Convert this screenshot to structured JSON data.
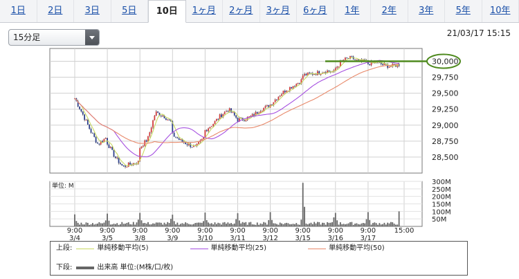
{
  "tabs": [
    {
      "label": "1日",
      "active": false
    },
    {
      "label": "2日",
      "active": false
    },
    {
      "label": "3日",
      "active": false
    },
    {
      "label": "5日",
      "active": false
    },
    {
      "label": "10日",
      "active": true
    },
    {
      "label": "1ヶ月",
      "active": false
    },
    {
      "label": "2ヶ月",
      "active": false
    },
    {
      "label": "3ヶ月",
      "active": false
    },
    {
      "label": "6ヶ月",
      "active": false
    },
    {
      "label": "1年",
      "active": false
    },
    {
      "label": "2年",
      "active": false
    },
    {
      "label": "3年",
      "active": false
    },
    {
      "label": "5年",
      "active": false
    },
    {
      "label": "10年",
      "active": false
    }
  ],
  "interval_select": {
    "value": "15分足"
  },
  "timestamp": "21/03/17 15:15",
  "colors": {
    "ma5": "#c8d860",
    "ma25": "#a54fe0",
    "ma50": "#e8896a",
    "candle_up": "#d23a3a",
    "candle_down": "#2d3f8a",
    "volume": "#666666",
    "highlight": "#4f8a1f"
  },
  "chart_data": [
    {
      "type": "candlestick",
      "title": "",
      "ylim": [
        28250,
        30200
      ],
      "y_ticks": [
        {
          "value": 30000,
          "label": "30,000"
        },
        {
          "value": 29750,
          "label": "29,750"
        },
        {
          "value": 29500,
          "label": "29,500"
        },
        {
          "value": 29250,
          "label": "29,250"
        },
        {
          "value": 29000,
          "label": "29,000"
        },
        {
          "value": 28750,
          "label": "28,750"
        },
        {
          "value": 28500,
          "label": "28,500"
        }
      ],
      "x_ticks": [
        {
          "time": "9:00",
          "date": "3/4"
        },
        {
          "time": "9:00",
          "date": "3/5"
        },
        {
          "time": "9:00",
          "date": "3/8"
        },
        {
          "time": "9:00",
          "date": "3/9"
        },
        {
          "time": "9:00",
          "date": "3/10"
        },
        {
          "time": "9:00",
          "date": "3/11"
        },
        {
          "time": "9:00",
          "date": "3/12"
        },
        {
          "time": "9:00",
          "date": "3/15"
        },
        {
          "time": "9:00",
          "date": "3/16"
        },
        {
          "time": "9:00",
          "date": "3/17"
        },
        {
          "time": "15:00",
          "date": ""
        }
      ],
      "days": [
        {
          "date": "3/4",
          "points": [
            29420,
            29180,
            28920,
            28700,
            28800
          ]
        },
        {
          "date": "3/5",
          "points": [
            28720,
            28500,
            28350,
            28390,
            28420
          ]
        },
        {
          "date": "3/8",
          "points": [
            28650,
            28780,
            29200,
            29150,
            29050
          ]
        },
        {
          "date": "3/9",
          "points": [
            28850,
            28760,
            28700,
            28650,
            28800
          ]
        },
        {
          "date": "3/10",
          "points": [
            28920,
            29020,
            29150,
            29250,
            29120
          ]
        },
        {
          "date": "3/11",
          "points": [
            29080,
            29100,
            29150,
            29250,
            29300
          ]
        },
        {
          "date": "3/12",
          "points": [
            29320,
            29450,
            29550,
            29620,
            29700
          ]
        },
        {
          "date": "3/15",
          "points": [
            29780,
            29800,
            29820,
            29850,
            29830
          ]
        },
        {
          "date": "3/16",
          "points": [
            29890,
            30020,
            30050,
            30000,
            29990
          ]
        },
        {
          "date": "3/17",
          "points": [
            29960,
            29990,
            29940,
            29920,
            29950
          ]
        }
      ],
      "series": [
        {
          "name": "単純移動平均(5)",
          "key": "ma5"
        },
        {
          "name": "単純移動平均(25)",
          "key": "ma25"
        },
        {
          "name": "単純移動平均(50)",
          "key": "ma50"
        }
      ],
      "reference_line": {
        "value": 30000
      }
    },
    {
      "type": "bar",
      "unit_label": "単位: M",
      "ylim": [
        0,
        300
      ],
      "y_ticks": [
        {
          "value": 300,
          "label": "300M"
        },
        {
          "value": 250,
          "label": "250M"
        },
        {
          "value": 200,
          "label": "200M"
        },
        {
          "value": 150,
          "label": "150M"
        },
        {
          "value": 100,
          "label": "100M"
        },
        {
          "value": 50,
          "label": "50M"
        }
      ],
      "day_open_volume": [
        80,
        85,
        90,
        78,
        92,
        88,
        95,
        290,
        90,
        95
      ],
      "day_close_volume": [
        40,
        45,
        50,
        35,
        48,
        42,
        45,
        60,
        48,
        100
      ],
      "typical_volume": 20
    }
  ],
  "legend": {
    "upper_label": "上段:",
    "lower_label": "下段:",
    "items": [
      "単純移動平均(5)",
      "単純移動平均(25)",
      "単純移動平均(50)"
    ],
    "volume_item": "出来高 単位:(M株/口/枚)"
  }
}
